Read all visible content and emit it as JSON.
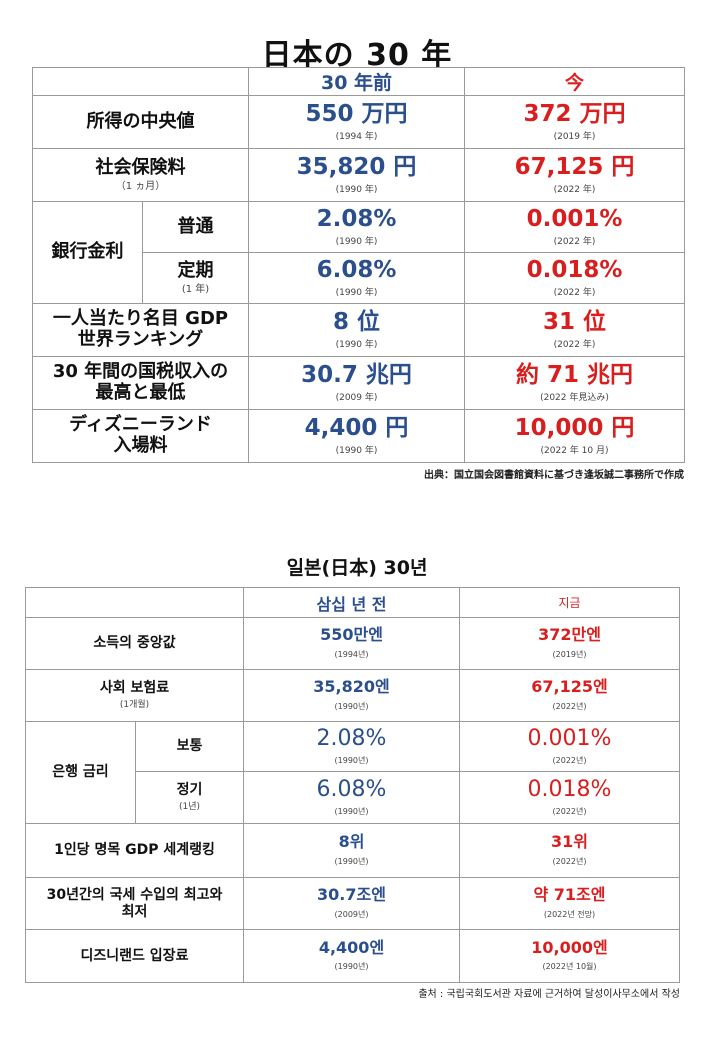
{
  "jp": {
    "title": "日本の 30 年",
    "header_then": "30 年前",
    "header_now": "今",
    "rows": [
      {
        "label": "所得の中央値",
        "sub": "",
        "then": "550 万円",
        "then_note": "(1994 年)",
        "now": "372 万円",
        "now_note": "(2019 年)"
      },
      {
        "label": "社会保険料",
        "sub": "（1 ヵ月）",
        "then": "35,820 円",
        "then_note": "(1990 年)",
        "now": "67,125 円",
        "now_note": "(2022 年)"
      },
      {
        "label": "普通",
        "sub": "",
        "then": "2.08%",
        "then_note": "(1990 年)",
        "now": "0.001%",
        "now_note": "(2022 年)"
      },
      {
        "label": "定期",
        "sub": "(1 年)",
        "then": "6.08%",
        "then_note": "(1990 年)",
        "now": "0.018%",
        "now_note": "(2022 年)"
      },
      {
        "label": "一人当たり名目 GDP\n世界ランキング",
        "sub": "",
        "then": "8 位",
        "then_note": "(1990 年)",
        "now": "31 位",
        "now_note": "(2022 年)"
      },
      {
        "label": "30 年間の国税収入の\n最高と最低",
        "sub": "",
        "then": "30.7 兆円",
        "then_note": "(2009 年)",
        "now": "約 71 兆円",
        "now_note": "(2022 年見込み)"
      },
      {
        "label": "ディズニーランド\n入場料",
        "sub": "",
        "then": "4,400 円",
        "then_note": "(1990 年)",
        "now": "10,000 円",
        "now_note": "(2022 年 10 月)"
      }
    ],
    "bank_group_label": "銀行金利",
    "source": "出典：国立国会図書館資料に基づき逢坂誠二事務所で作成"
  },
  "kr": {
    "title": "일본(日本) 30년",
    "header_then": "삼십 년 전",
    "header_now": "지금",
    "rows": [
      {
        "label": "소득의 중앙값",
        "sub": "",
        "then": "550만엔",
        "then_note": "(1994년)",
        "now": "372만엔",
        "now_note": "(2019년)"
      },
      {
        "label": "사회 보험료",
        "sub": "(1개월)",
        "then": "35,820엔",
        "then_note": "(1990년)",
        "now": "67,125엔",
        "now_note": "(2022년)"
      },
      {
        "label": "보통",
        "sub": "",
        "then": "2.08%",
        "then_note": "(1990년)",
        "now": "0.001%",
        "now_note": "(2022년)"
      },
      {
        "label": "정기",
        "sub": "(1년)",
        "then": "6.08%",
        "then_note": "(1990년)",
        "now": "0.018%",
        "now_note": "(2022년)"
      },
      {
        "label": "1인당 명목 GDP 세계랭킹",
        "sub": "",
        "then": "8위",
        "then_note": "(1990년)",
        "now": "31위",
        "now_note": "(2022년)"
      },
      {
        "label": "30년간의 국세 수입의 최고와\n최저",
        "sub": "",
        "then": "30.7조엔",
        "then_note": "(2009년)",
        "now": "약 71조엔",
        "now_note": "(2022년 전망)"
      },
      {
        "label": "디즈니랜드 입장료",
        "sub": "",
        "then": "4,400엔",
        "then_note": "(1990년)",
        "now": "10,000엔",
        "now_note": "(2022년 10월)"
      }
    ],
    "bank_group_label": "은행 금리",
    "source": "출처 : 국립국회도서관 자료에 근거하여 달성이사무소에서 작성"
  }
}
